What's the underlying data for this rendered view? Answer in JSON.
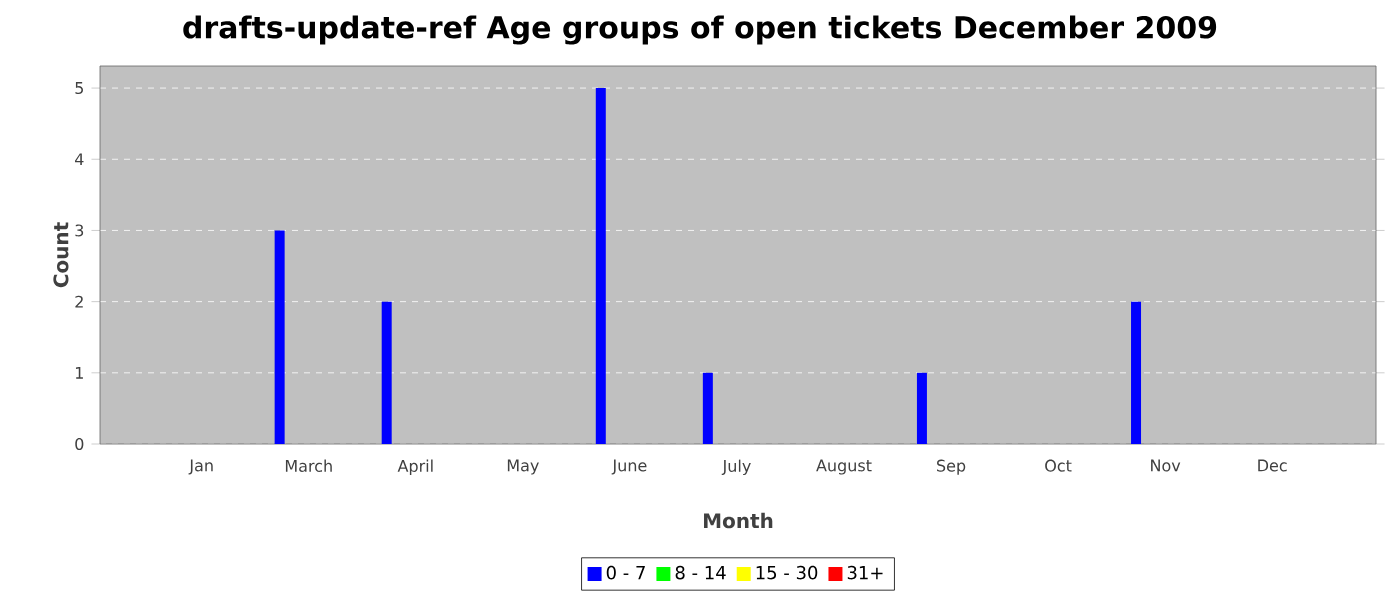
{
  "chart_data": {
    "type": "bar",
    "title": "drafts-update-ref Age groups of open tickets December 2009",
    "xlabel": "Month",
    "ylabel": "Count",
    "categories": [
      "Jan",
      "March",
      "April",
      "May",
      "June",
      "July",
      "August",
      "Sep",
      "Oct",
      "Nov",
      "Dec"
    ],
    "series": [
      {
        "name": "0 - 7",
        "color": "#0000ff",
        "values": [
          0,
          3,
          2,
          0,
          5,
          1,
          0,
          1,
          0,
          2,
          0
        ]
      },
      {
        "name": "8 - 14",
        "color": "#00ff00",
        "values": [
          0,
          0,
          0,
          0,
          0,
          0,
          0,
          0,
          0,
          0,
          0
        ]
      },
      {
        "name": "15 - 30",
        "color": "#ffff00",
        "values": [
          0,
          0,
          0,
          0,
          0,
          0,
          0,
          0,
          0,
          0,
          0
        ]
      },
      {
        "name": "31+",
        "color": "#ff0000",
        "values": [
          0,
          0,
          0,
          0,
          0,
          0,
          0,
          0,
          0,
          0,
          0
        ]
      }
    ],
    "ylim": [
      0,
      5.31
    ],
    "yticks": [
      0,
      1,
      2,
      3,
      4,
      5
    ],
    "grid": "y",
    "legend": "bottom"
  }
}
